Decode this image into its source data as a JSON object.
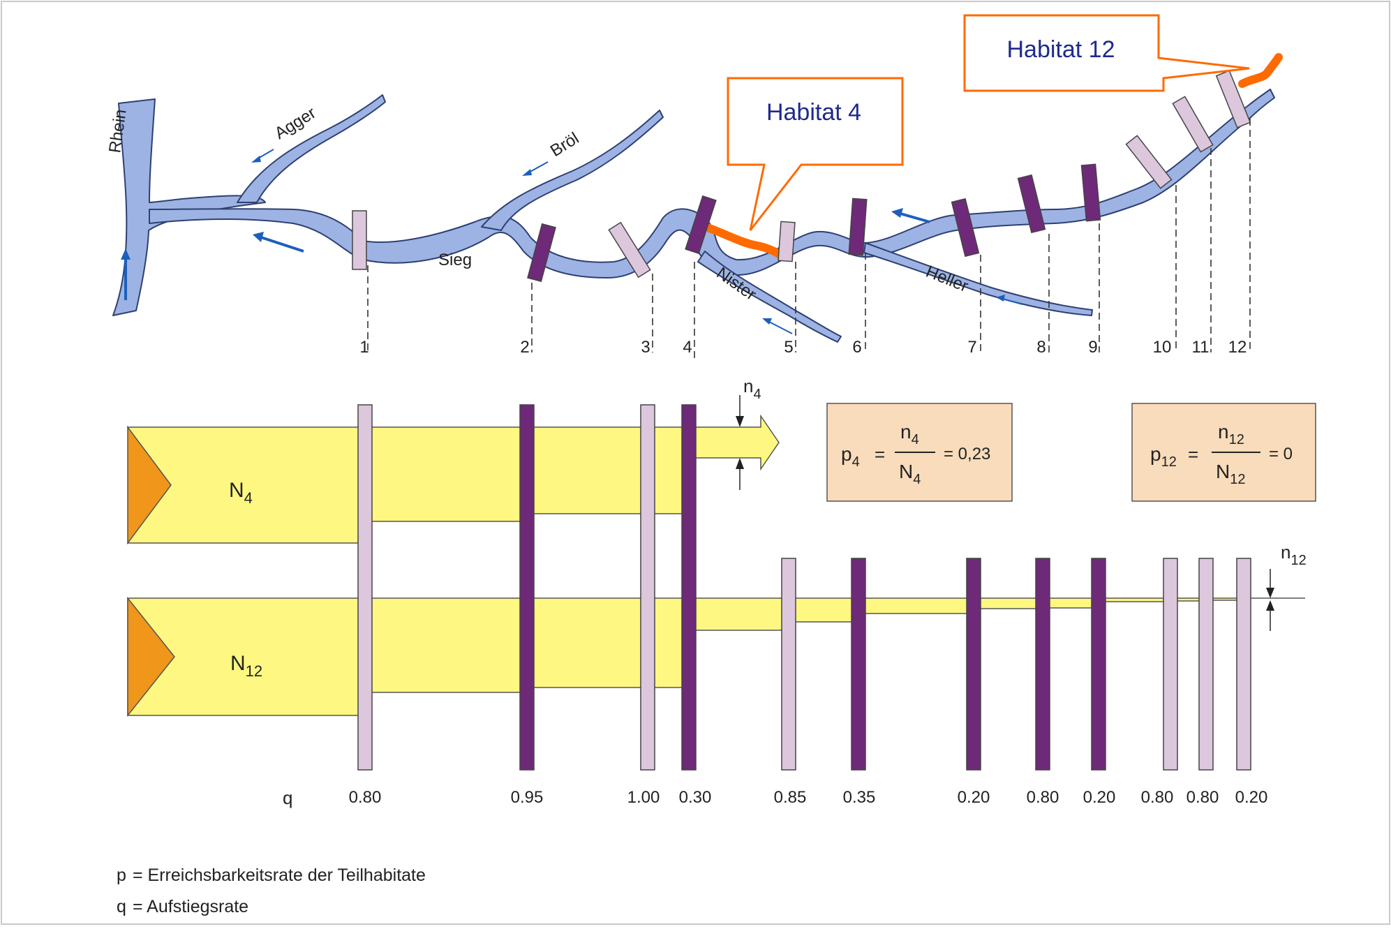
{
  "colors": {
    "river": "#9db3e3",
    "river_stroke": "#2e3f73",
    "passable_barrier": "#dcc7dd",
    "impassable_barrier": "#6e2a78",
    "flow_band": "#fef781",
    "source_triangle": "#f0961a",
    "habitat_line": "#ff6a00",
    "callout_border": "#ff6a00",
    "callout_text": "#1f2a8c",
    "formula_box": "#f8dcbb",
    "arrow": "#1d5fbd"
  },
  "rivers": {
    "rhein": "Rhein",
    "agger": "Agger",
    "broel": "Bröl",
    "sieg": "Sieg",
    "nister": "Nister",
    "heller": "Heller"
  },
  "callouts": {
    "habitat4": "Habitat 4",
    "habitat12": "Habitat 12"
  },
  "barriers": [
    {
      "label": "1",
      "q": "0.80"
    },
    {
      "label": "2",
      "q": "0.95"
    },
    {
      "label": "3",
      "q": "1.00"
    },
    {
      "label": "4",
      "q": "0.30"
    },
    {
      "label": "5",
      "q": "0.85"
    },
    {
      "label": "6",
      "q": "0.35"
    },
    {
      "label": "7",
      "q": "0.20"
    },
    {
      "label": "8",
      "q": "0.80"
    },
    {
      "label": "9",
      "q": "0.20"
    },
    {
      "label": "10",
      "q": "0.80"
    },
    {
      "label": "11",
      "q": "0.80"
    },
    {
      "label": "12",
      "q": "0.20"
    }
  ],
  "q_label": "q",
  "flows": {
    "N4": {
      "main": "N",
      "sub": "4"
    },
    "N12": {
      "main": "N",
      "sub": "12"
    },
    "n4": {
      "main": "n",
      "sub": "4"
    },
    "n12": {
      "main": "n",
      "sub": "12"
    }
  },
  "formulas": {
    "p4": {
      "p": "p",
      "psub": "4",
      "n": "n",
      "nsub": "4",
      "N": "N",
      "Nsub": "4",
      "eq1": "=",
      "result": "= 0,23"
    },
    "p12": {
      "p": "p",
      "psub": "12",
      "n": "n",
      "nsub": "12",
      "N": "N",
      "Nsub": "12",
      "eq1": "=",
      "result": "= 0"
    }
  },
  "legend": {
    "p_symbol": "p",
    "p_text": "= Erreichsbarkeitsrate der Teilhabitate",
    "q_symbol": "q",
    "q_text": "= Aufstiegsrate"
  }
}
